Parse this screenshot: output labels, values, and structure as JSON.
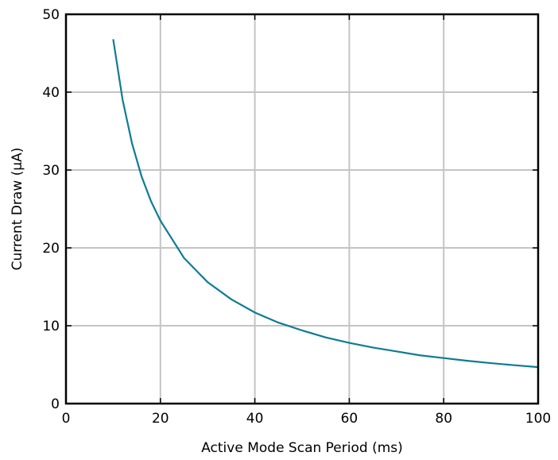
{
  "chart_data": {
    "type": "line",
    "title": "",
    "xlabel": "Active Mode Scan Period (ms)",
    "ylabel": "Current Draw (μA)",
    "xlim": [
      0,
      100
    ],
    "ylim": [
      0,
      50
    ],
    "x_ticks": [
      0,
      20,
      40,
      60,
      80,
      100
    ],
    "y_ticks": [
      0,
      10,
      20,
      30,
      40,
      50
    ],
    "x_tick_labels": [
      "0",
      "20",
      "40",
      "60",
      "80",
      "100"
    ],
    "y_tick_labels": [
      "0",
      "10",
      "20",
      "30",
      "40",
      "50"
    ],
    "grid": true,
    "legend": "none",
    "series": [
      {
        "color": "#0e7c92",
        "x": [
          10,
          12,
          14,
          16,
          18,
          20,
          25,
          30,
          35,
          40,
          45,
          50,
          55,
          60,
          65,
          70,
          75,
          80,
          85,
          90,
          95,
          100
        ],
        "y": [
          46.8,
          39.0,
          33.4,
          29.2,
          26.0,
          23.5,
          18.7,
          15.6,
          13.4,
          11.7,
          10.4,
          9.4,
          8.5,
          7.8,
          7.2,
          6.7,
          6.2,
          5.85,
          5.5,
          5.2,
          4.93,
          4.68
        ]
      }
    ]
  }
}
